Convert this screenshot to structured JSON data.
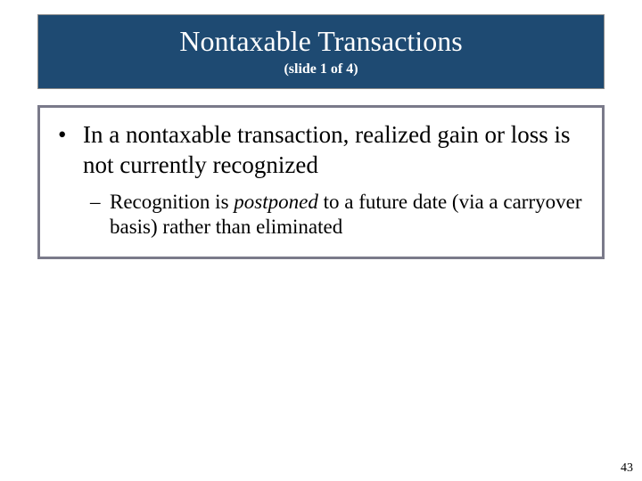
{
  "title": {
    "main": "Nontaxable Transactions",
    "sub": "(slide 1 of 4)"
  },
  "content": {
    "bullet": {
      "mark": "•",
      "text": "In a nontaxable transaction, realized gain or loss is not currently recognized"
    },
    "sub": {
      "mark": "–",
      "pre": "Recognition is ",
      "emph": "postponed",
      "post": " to a future date (via a carryover basis) rather than eliminated"
    }
  },
  "page_number": "43",
  "colors": {
    "title_bg": "#1e4a72",
    "title_border": "#8a8a8a",
    "content_border": "#7a7a8a",
    "background": "#ffffff",
    "text": "#000000",
    "title_text": "#ffffff"
  }
}
